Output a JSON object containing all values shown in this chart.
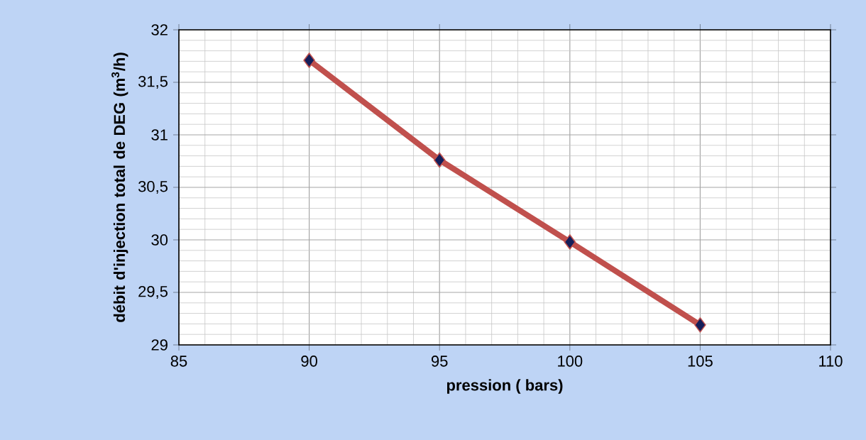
{
  "chart_data": {
    "type": "line",
    "xlabel": "pression ( bars)",
    "ylabel": "débit d'injection total de DEG (m$^{3}$/h)",
    "x": [
      90,
      95,
      100,
      105
    ],
    "values": [
      31.71,
      30.76,
      29.98,
      29.19
    ],
    "color": "#c0504d",
    "xlim": [
      85,
      110
    ],
    "xticks": [
      85,
      90,
      95,
      100,
      105,
      110
    ],
    "ylim": [
      29,
      32
    ],
    "yticks": [
      29,
      {
        "value": 29.5,
        "label": "29,5"
      },
      30,
      {
        "value": 30.5,
        "label": "30,5"
      },
      31,
      {
        "value": 31.5,
        "label": "31,5"
      },
      32
    ],
    "grid": true,
    "marker": "diamond",
    "line_style": "solid"
  }
}
